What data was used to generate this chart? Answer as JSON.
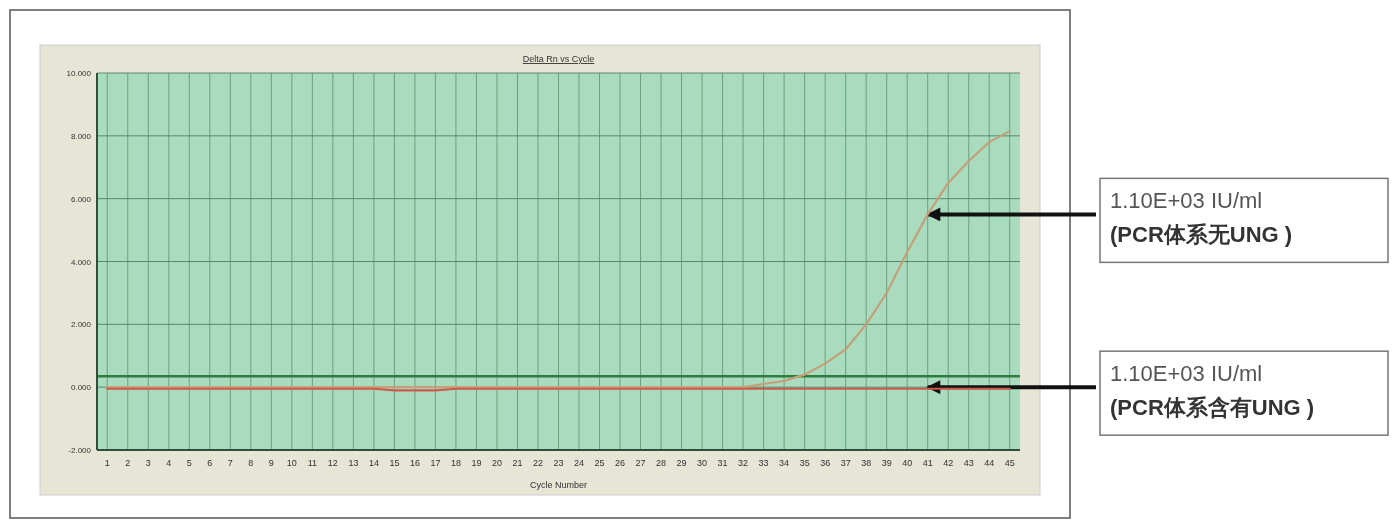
{
  "chart_data": {
    "type": "line",
    "title": "Delta Rn vs Cycle",
    "xlabel": "Cycle Number",
    "x": [
      1,
      2,
      3,
      4,
      5,
      6,
      7,
      8,
      9,
      10,
      11,
      12,
      13,
      14,
      15,
      16,
      17,
      18,
      19,
      20,
      21,
      22,
      23,
      24,
      25,
      26,
      27,
      28,
      29,
      30,
      31,
      32,
      33,
      34,
      35,
      36,
      37,
      38,
      39,
      40,
      41,
      42,
      43,
      44,
      45
    ],
    "series": [
      {
        "color": "#c4a078",
        "values": [
          0.0,
          0.0,
          0.0,
          0.0,
          0.0,
          0.0,
          0.0,
          0.0,
          0.0,
          0.0,
          0.0,
          0.0,
          0.0,
          0.0,
          0.0,
          0.0,
          0.0,
          0.0,
          0.0,
          0.0,
          0.0,
          0.0,
          0.0,
          0.0,
          0.0,
          0.0,
          0.0,
          0.0,
          0.0,
          0.0,
          0.0,
          0.0,
          0.1,
          0.2,
          0.4,
          0.75,
          1.2,
          2.0,
          3.0,
          4.3,
          5.5,
          6.5,
          7.2,
          7.8,
          8.15
        ]
      },
      {
        "color": "#d0584a",
        "values": [
          -0.05,
          -0.05,
          -0.05,
          -0.05,
          -0.05,
          -0.05,
          -0.05,
          -0.05,
          -0.05,
          -0.05,
          -0.05,
          -0.05,
          -0.05,
          -0.05,
          -0.1,
          -0.1,
          -0.1,
          -0.05,
          -0.05,
          -0.05,
          -0.05,
          -0.05,
          -0.05,
          -0.05,
          -0.05,
          -0.05,
          -0.05,
          -0.05,
          -0.05,
          -0.05,
          -0.05,
          -0.05,
          -0.05,
          -0.05,
          -0.05,
          -0.05,
          -0.05,
          -0.05,
          -0.05,
          -0.05,
          -0.05,
          -0.05,
          -0.05,
          -0.05,
          -0.05
        ]
      }
    ],
    "xlim": [
      0.5,
      45.5
    ],
    "xticks": [
      1,
      2,
      3,
      4,
      5,
      6,
      7,
      8,
      9,
      10,
      11,
      12,
      13,
      14,
      15,
      16,
      17,
      18,
      19,
      20,
      21,
      22,
      23,
      24,
      25,
      26,
      27,
      28,
      29,
      30,
      31,
      32,
      33,
      34,
      35,
      36,
      37,
      38,
      39,
      40,
      41,
      42,
      43,
      44,
      45
    ],
    "ylim": [
      -2,
      10
    ],
    "yticks": [
      {
        "value": -2,
        "label": "-2.000"
      },
      {
        "value": 0,
        "label": "0.000"
      },
      {
        "value": 2,
        "label": "2.000"
      },
      {
        "value": 4,
        "label": "4.000"
      },
      {
        "value": 6,
        "label": "6.000"
      },
      {
        "value": 8,
        "label": "8.000"
      },
      {
        "value": 10,
        "label": "10.000"
      }
    ],
    "ref_lines": [
      {
        "axis": "y",
        "value": 0.35,
        "color": "#2e7d3e"
      }
    ],
    "annotations": [
      {
        "text": "1.10E+03 IU/ml\n(PCR体系无UNG )",
        "x": 41,
        "y": 5.5
      },
      {
        "text": "1.10E+03 IU/ml\n(PCR体系含有UNG )",
        "x": 41,
        "y": 0.0
      }
    ],
    "grid": true,
    "marker": "none",
    "line_style": "solid"
  }
}
